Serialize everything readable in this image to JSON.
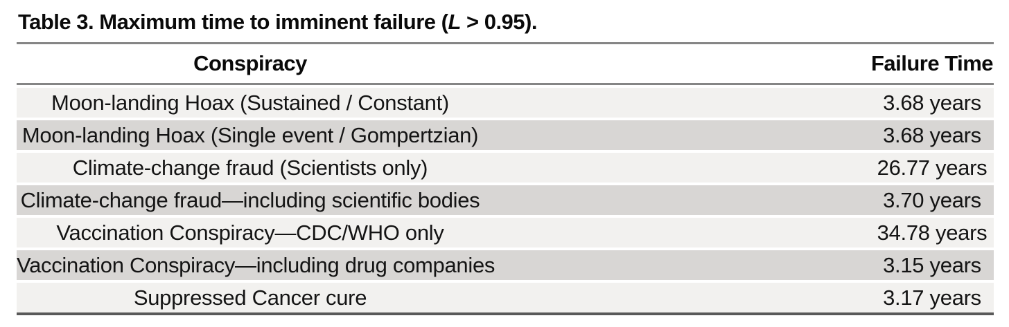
{
  "caption": {
    "prefix": "Table 3. Maximum time to imminent failure (",
    "variable": "L",
    "suffix": " > 0.95)."
  },
  "table": {
    "columns": [
      "Conspiracy",
      "Failure Time"
    ],
    "rows": [
      {
        "conspiracy": "Moon-landing Hoax (Sustained / Constant)",
        "failure_time": "3.68 years"
      },
      {
        "conspiracy": "Moon-landing Hoax (Single event / Gompertzian)",
        "failure_time": "3.68 years"
      },
      {
        "conspiracy": "Climate-change fraud (Scientists only)",
        "failure_time": "26.77 years"
      },
      {
        "conspiracy": "Climate-change fraud—including scientific bodies",
        "failure_time": "3.70 years"
      },
      {
        "conspiracy": "Vaccination Conspiracy—CDC/WHO only",
        "failure_time": "34.78 years"
      },
      {
        "conspiracy": "Vaccination Conspiracy—including drug companies",
        "failure_time": "3.15 years"
      },
      {
        "conspiracy": "Suppressed Cancer cure",
        "failure_time": "3.17 years"
      }
    ]
  },
  "colors": {
    "row_light": "#f2f1ef",
    "row_dark": "#d8d6d4",
    "rule_gray": "#858585",
    "rule_dark": "#595959"
  }
}
